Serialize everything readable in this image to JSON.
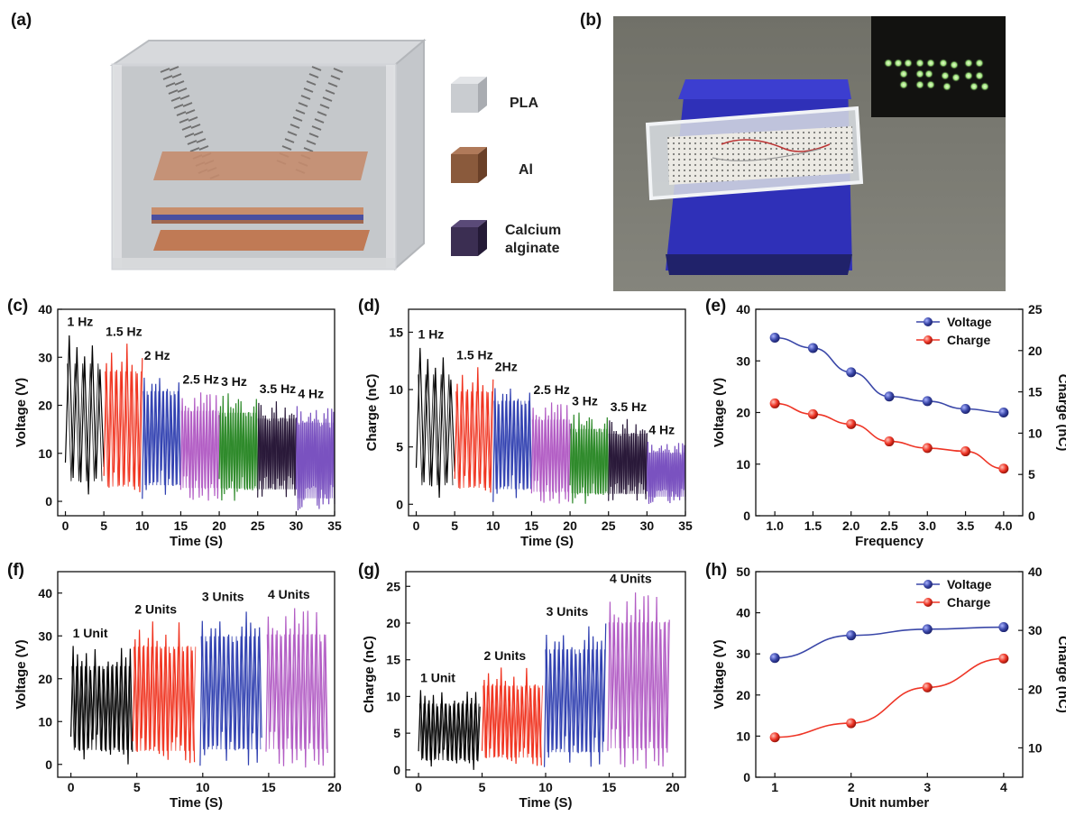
{
  "panels": {
    "a": {
      "label": "(a)",
      "legend": [
        {
          "name": "PLA",
          "color": "#c9ccd0"
        },
        {
          "name": "Al",
          "color": "#8a5a3c"
        },
        {
          "name": "Calcium\nalginate",
          "color": "#3b2e52"
        }
      ]
    },
    "b": {
      "label": "(b)"
    }
  },
  "chart_data": [
    {
      "id": "c",
      "label": "(c)",
      "type": "line",
      "xlabel": "Time (S)",
      "ylabel": "Voltage (V)",
      "xlim": [
        -1,
        35
      ],
      "ylim": [
        -3,
        40
      ],
      "xticks": [
        0,
        5,
        10,
        15,
        20,
        25,
        30,
        35
      ],
      "yticks": [
        0,
        10,
        20,
        30,
        40
      ],
      "series": [
        {
          "name": "1 Hz",
          "t0": 0,
          "t1": 5,
          "freq": 1,
          "low": 0,
          "high": 35,
          "color": "#000000"
        },
        {
          "name": "1.5 Hz",
          "t0": 5,
          "t1": 10,
          "freq": 1.5,
          "low": -1,
          "high": 33,
          "color": "#f0321e"
        },
        {
          "name": "2 Hz",
          "t0": 10,
          "t1": 15,
          "freq": 2,
          "low": 0,
          "high": 28,
          "color": "#2f3fb0"
        },
        {
          "name": "2.5 Hz",
          "t0": 15,
          "t1": 20,
          "freq": 2.5,
          "low": 0,
          "high": 23,
          "color": "#b25cc4"
        },
        {
          "name": "3 Hz",
          "t0": 20,
          "t1": 25,
          "freq": 3,
          "low": 0,
          "high": 22.5,
          "color": "#2e8a2a"
        },
        {
          "name": "3.5 Hz",
          "t0": 25,
          "t1": 30,
          "freq": 3.5,
          "low": 0,
          "high": 21,
          "color": "#2a1a3a"
        },
        {
          "name": "4 Hz",
          "t0": 30,
          "t1": 35,
          "freq": 4,
          "low": -2,
          "high": 20,
          "color": "#7a52c0"
        }
      ]
    },
    {
      "id": "d",
      "label": "(d)",
      "type": "line",
      "xlabel": "Time (S)",
      "ylabel": "Charge (nC)",
      "xlim": [
        -1,
        35
      ],
      "ylim": [
        -1,
        17
      ],
      "xticks": [
        0,
        5,
        10,
        15,
        20,
        25,
        30,
        35
      ],
      "yticks": [
        0,
        5,
        10,
        15
      ],
      "series": [
        {
          "name": "1 Hz",
          "t0": 0,
          "t1": 5,
          "freq": 1,
          "low": 0,
          "high": 13.8,
          "color": "#000000"
        },
        {
          "name": "1.5 Hz",
          "t0": 5,
          "t1": 10,
          "freq": 1.5,
          "low": 0,
          "high": 12,
          "color": "#f0321e"
        },
        {
          "name": "2Hz",
          "t0": 10,
          "t1": 15,
          "freq": 2,
          "low": 0,
          "high": 11,
          "color": "#2f3fb0"
        },
        {
          "name": "2.5 Hz",
          "t0": 15,
          "t1": 20,
          "freq": 2.5,
          "low": 0,
          "high": 9,
          "color": "#b25cc4"
        },
        {
          "name": "3 Hz",
          "t0": 20,
          "t1": 25,
          "freq": 3,
          "low": 0,
          "high": 8,
          "color": "#2e8a2a"
        },
        {
          "name": "3.5 Hz",
          "t0": 25,
          "t1": 30,
          "freq": 3.5,
          "low": 0,
          "high": 7.5,
          "color": "#2a1a3a"
        },
        {
          "name": "4 Hz",
          "t0": 30,
          "t1": 35,
          "freq": 4,
          "low": 0,
          "high": 5.5,
          "color": "#7a52c0"
        }
      ]
    },
    {
      "id": "e",
      "label": "(e)",
      "type": "scatter",
      "xlabel": "Frequency",
      "ylabel": "Voltage (V)",
      "y2label": "Charge (nC)",
      "xlim": [
        0.75,
        4.25
      ],
      "ylim": [
        0,
        40
      ],
      "y2lim": [
        0,
        25
      ],
      "xticks": [
        1.0,
        1.5,
        2.0,
        2.5,
        3.0,
        3.5,
        4.0
      ],
      "yticks": [
        0,
        10,
        20,
        30,
        40
      ],
      "y2ticks": [
        0,
        5,
        10,
        15,
        20,
        25
      ],
      "legend": "top-right",
      "x": [
        1.0,
        1.5,
        2.0,
        2.5,
        3.0,
        3.5,
        4.0
      ],
      "series": [
        {
          "name": "Voltage",
          "axis": "left",
          "color": "#3a47a8",
          "values": [
            34.5,
            32.5,
            27.8,
            23.1,
            22.2,
            20.7,
            20.0
          ]
        },
        {
          "name": "Charge",
          "axis": "right",
          "color": "#ee3526",
          "values": [
            13.6,
            12.3,
            11.1,
            9.0,
            8.2,
            7.8,
            5.7
          ]
        }
      ]
    },
    {
      "id": "f",
      "label": "(f)",
      "type": "line",
      "xlabel": "Time (S)",
      "ylabel": "Voltage (V)",
      "xlim": [
        -1,
        20
      ],
      "ylim": [
        -3,
        45
      ],
      "xticks": [
        0,
        5,
        10,
        15,
        20
      ],
      "yticks": [
        0,
        10,
        20,
        30,
        40
      ],
      "series": [
        {
          "name": "1 Unit",
          "t0": 0,
          "t1": 4.7,
          "freq": 3,
          "low": 0,
          "high": 28,
          "color": "#000000"
        },
        {
          "name": "2 Units",
          "t0": 4.7,
          "t1": 9.5,
          "freq": 3,
          "low": -1,
          "high": 33.5,
          "color": "#f0321e"
        },
        {
          "name": "3 Units",
          "t0": 9.8,
          "t1": 14.5,
          "freq": 3,
          "low": -1,
          "high": 36.5,
          "color": "#2f3fb0"
        },
        {
          "name": "4 Units",
          "t0": 14.8,
          "t1": 19.5,
          "freq": 3,
          "low": -1,
          "high": 37,
          "color": "#b25cc4"
        }
      ]
    },
    {
      "id": "g",
      "label": "(g)",
      "type": "line",
      "xlabel": "Time (S)",
      "ylabel": "Charge (nC)",
      "xlim": [
        -1,
        21
      ],
      "ylim": [
        -1,
        27
      ],
      "xticks": [
        0,
        5,
        10,
        15,
        20
      ],
      "yticks": [
        0,
        5,
        10,
        15,
        20,
        25
      ],
      "series": [
        {
          "name": "1 Unit",
          "t0": 0,
          "t1": 4.9,
          "freq": 3,
          "low": 0,
          "high": 11,
          "color": "#000000"
        },
        {
          "name": "2 Units",
          "t0": 5,
          "t1": 9.8,
          "freq": 3,
          "low": 0,
          "high": 14,
          "color": "#f0321e"
        },
        {
          "name": "3 Units",
          "t0": 9.9,
          "t1": 14.8,
          "freq": 3,
          "low": 0,
          "high": 20,
          "color": "#2f3fb0"
        },
        {
          "name": "4 Units",
          "t0": 14.9,
          "t1": 19.8,
          "freq": 3,
          "low": 0,
          "high": 24.5,
          "color": "#b25cc4"
        }
      ]
    },
    {
      "id": "h",
      "label": "(h)",
      "type": "scatter",
      "xlabel": "Unit number",
      "ylabel": "Voltage (V)",
      "y2label": "Charge (nC)",
      "xlim": [
        0.75,
        4.25
      ],
      "ylim": [
        0,
        50
      ],
      "y2lim": [
        5,
        40
      ],
      "xticks": [
        1,
        2,
        3,
        4
      ],
      "yticks": [
        0,
        10,
        20,
        30,
        40,
        50
      ],
      "y2ticks": [
        10,
        20,
        30,
        40
      ],
      "legend": "top-right",
      "x": [
        1,
        2,
        3,
        4
      ],
      "series": [
        {
          "name": "Voltage",
          "axis": "left",
          "color": "#3a47a8",
          "values": [
            29.0,
            34.5,
            36.0,
            36.5
          ]
        },
        {
          "name": "Charge",
          "axis": "right",
          "color": "#ee3526",
          "values": [
            11.8,
            14.2,
            20.3,
            25.2
          ]
        }
      ]
    }
  ]
}
